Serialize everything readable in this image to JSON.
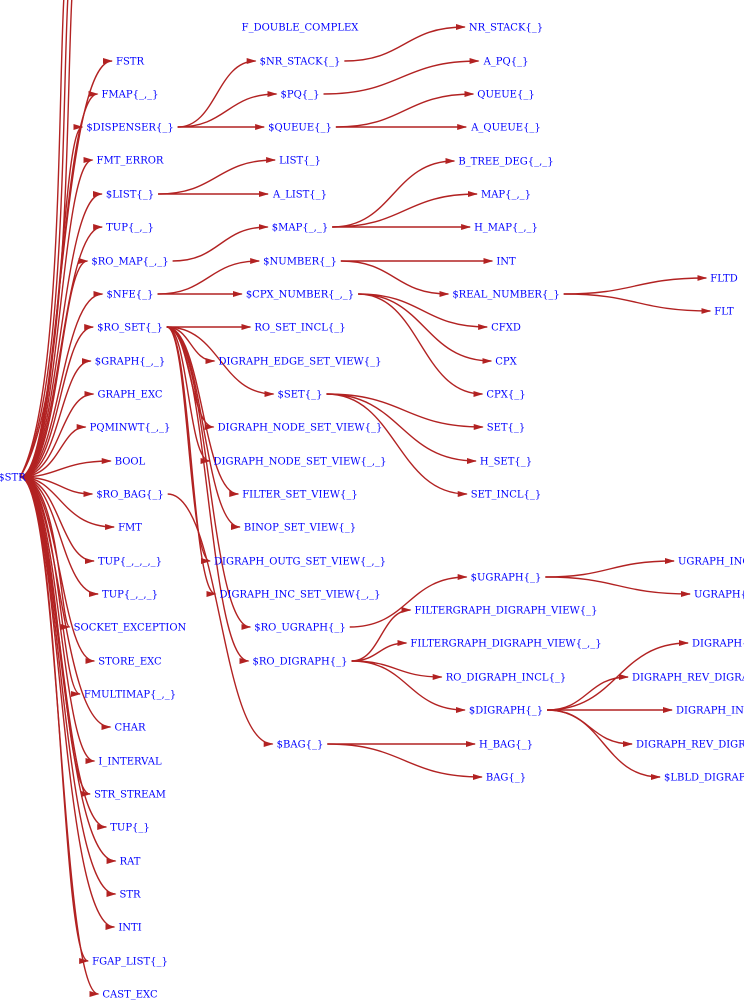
{
  "diagram": {
    "edge_color": "#b22222",
    "label_color": "#0000ff",
    "root": "$STR",
    "nodes": [
      "$STR",
      "FSTR",
      "FMAP{_,_}",
      "$DISPENSER{_}",
      "FMT_ERROR",
      "$LIST{_}",
      "TUP{_,_}",
      "$RO_MAP{_,_}",
      "$NFE{_}",
      "$RO_SET{_}",
      "$GRAPH{_,_}",
      "GRAPH_EXC",
      "PQMINWT{_,_}",
      "BOOL",
      "$RO_BAG{_}",
      "FMT",
      "TUP{_,_,_,_}",
      "TUP{_,_,_}",
      "SOCKET_EXCEPTION",
      "STORE_EXC",
      "FMULTIMAP{_,_}",
      "CHAR",
      "I_INTERVAL",
      "STR_STREAM",
      "TUP{_}",
      "RAT",
      "STR",
      "INTI",
      "FGAP_LIST{_}",
      "CAST_EXC",
      "F_DOUBLE_COMPLEX",
      "$NR_STACK{_}",
      "$PQ{_}",
      "$QUEUE{_}",
      "LIST{_}",
      "A_LIST{_}",
      "$MAP{_,_}",
      "$NUMBER{_}",
      "$CPX_NUMBER{_,_}",
      "RO_SET_INCL{_}",
      "DIGRAPH_EDGE_SET_VIEW{_}",
      "$SET{_}",
      "DIGRAPH_NODE_SET_VIEW{_}",
      "DIGRAPH_NODE_SET_VIEW{_,_}",
      "FILTER_SET_VIEW{_}",
      "BINOP_SET_VIEW{_}",
      "DIGRAPH_OUTG_SET_VIEW{_,_}",
      "DIGRAPH_INC_SET_VIEW{_,_}",
      "$RO_UGRAPH{_}",
      "$RO_DIGRAPH{_}",
      "$BAG{_}",
      "NR_STACK{_}",
      "A_PQ{_}",
      "QUEUE{_}",
      "A_QUEUE{_}",
      "B_TREE_DEG{_,_}",
      "MAP{_,_}",
      "H_MAP{_,_}",
      "INT",
      "$REAL_NUMBER{_}",
      "CFXD",
      "CPX",
      "CPX{_}",
      "SET{_}",
      "H_SET{_}",
      "SET_INCL{_}",
      "$UGRAPH{_}",
      "FILTERGRAPH_DIGRAPH_VIEW{_}",
      "FILTERGRAPH_DIGRAPH_VIEW{_,_}",
      "RO_DIGRAPH_INCL{_}",
      "$DIGRAPH{_}",
      "H_BAG{_}",
      "BAG{_}",
      "FLTD",
      "FLT",
      "UGRAPH_INC",
      "UGRAPH{",
      "DIGRAPH{",
      "DIGRAPH_REV_DIGRA",
      "DIGRAPH_INC",
      "DIGRAPH_REV_DIGRA",
      "$LBLD_DIGRAP"
    ],
    "edges": [
      [
        3,
        31
      ],
      [
        3,
        32
      ],
      [
        3,
        33
      ],
      [
        5,
        34
      ],
      [
        5,
        35
      ],
      [
        7,
        36
      ],
      [
        8,
        37
      ],
      [
        8,
        38
      ],
      [
        9,
        39
      ],
      [
        9,
        40
      ],
      [
        9,
        41
      ],
      [
        9,
        42
      ],
      [
        9,
        43
      ],
      [
        9,
        44
      ],
      [
        9,
        45
      ],
      [
        9,
        46
      ],
      [
        9,
        47
      ],
      [
        9,
        48
      ],
      [
        9,
        49
      ],
      [
        14,
        50
      ],
      [
        31,
        51
      ],
      [
        32,
        52
      ],
      [
        33,
        53
      ],
      [
        33,
        54
      ],
      [
        36,
        55
      ],
      [
        36,
        56
      ],
      [
        36,
        57
      ],
      [
        37,
        58
      ],
      [
        37,
        59
      ],
      [
        38,
        60
      ],
      [
        38,
        61
      ],
      [
        38,
        62
      ],
      [
        41,
        63
      ],
      [
        41,
        64
      ],
      [
        41,
        65
      ],
      [
        48,
        66
      ],
      [
        49,
        67
      ],
      [
        49,
        68
      ],
      [
        49,
        69
      ],
      [
        49,
        70
      ],
      [
        50,
        71
      ],
      [
        50,
        72
      ],
      [
        59,
        73
      ],
      [
        59,
        74
      ],
      [
        66,
        75
      ],
      [
        66,
        76
      ],
      [
        70,
        77
      ],
      [
        70,
        78
      ],
      [
        70,
        79
      ],
      [
        70,
        80
      ],
      [
        70,
        81
      ]
    ]
  }
}
